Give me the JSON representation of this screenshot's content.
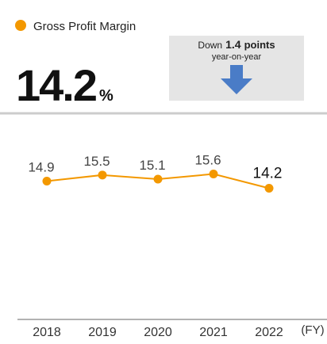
{
  "header": {
    "value": 14.2,
    "unit": "%",
    "direction": "Down",
    "amount": 1.4,
    "amount_unit": "points",
    "period": "year-on-year"
  },
  "chart_data": {
    "type": "line",
    "title": "Gross Profit Margin",
    "x_label": "(FY)",
    "categories": [
      "2018",
      "2019",
      "2020",
      "2021",
      "2022"
    ],
    "series": [
      {
        "name": "Gross Profit Margin",
        "color": "#f39800",
        "values": [
          14.9,
          15.5,
          15.1,
          15.6,
          14.2
        ]
      }
    ],
    "ylim": [
      0,
      20
    ]
  }
}
